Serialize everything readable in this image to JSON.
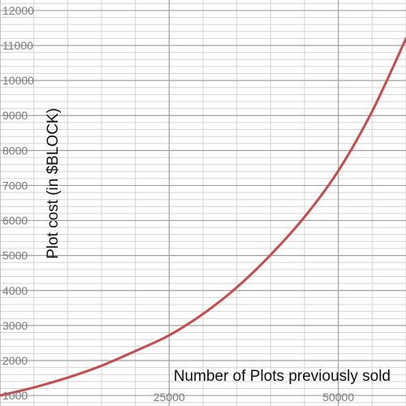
{
  "chart_data": {
    "type": "line",
    "title": "",
    "xlabel": "Number of Plots previously sold",
    "ylabel": "Plot cost (in $BLOCK)",
    "xlim": [
      0,
      60000
    ],
    "ylim": [
      700,
      12300
    ],
    "x_ticks": [
      {
        "value": 25000,
        "label": "25000"
      },
      {
        "value": 50000,
        "label": "50000"
      }
    ],
    "y_ticks": [
      {
        "value": 1000,
        "label": "1000"
      },
      {
        "value": 2000,
        "label": "2000"
      },
      {
        "value": 3000,
        "label": "3000"
      },
      {
        "value": 4000,
        "label": "4000"
      },
      {
        "value": 5000,
        "label": "5000"
      },
      {
        "value": 6000,
        "label": "6000"
      },
      {
        "value": 7000,
        "label": "7000"
      },
      {
        "value": 8000,
        "label": "8000"
      },
      {
        "value": 9000,
        "label": "9000"
      },
      {
        "value": 10000,
        "label": "10000"
      },
      {
        "value": 11000,
        "label": "11000"
      },
      {
        "value": 12000,
        "label": "12000"
      }
    ],
    "grid": true,
    "series": [
      {
        "name": "Plot cost",
        "color": "#c94c4c",
        "x": [
          0,
          5000,
          10000,
          15000,
          20000,
          25000,
          30000,
          35000,
          40000,
          45000,
          50000,
          55000,
          60000
        ],
        "values": [
          1000,
          1230,
          1510,
          1850,
          2270,
          2720,
          3330,
          4090,
          5020,
          6100,
          7420,
          9120,
          11200
        ]
      }
    ],
    "colors": {
      "grid_major": "#a0a0a0",
      "grid_minor": "#d4d4d4",
      "line": "#c94c4c"
    }
  }
}
